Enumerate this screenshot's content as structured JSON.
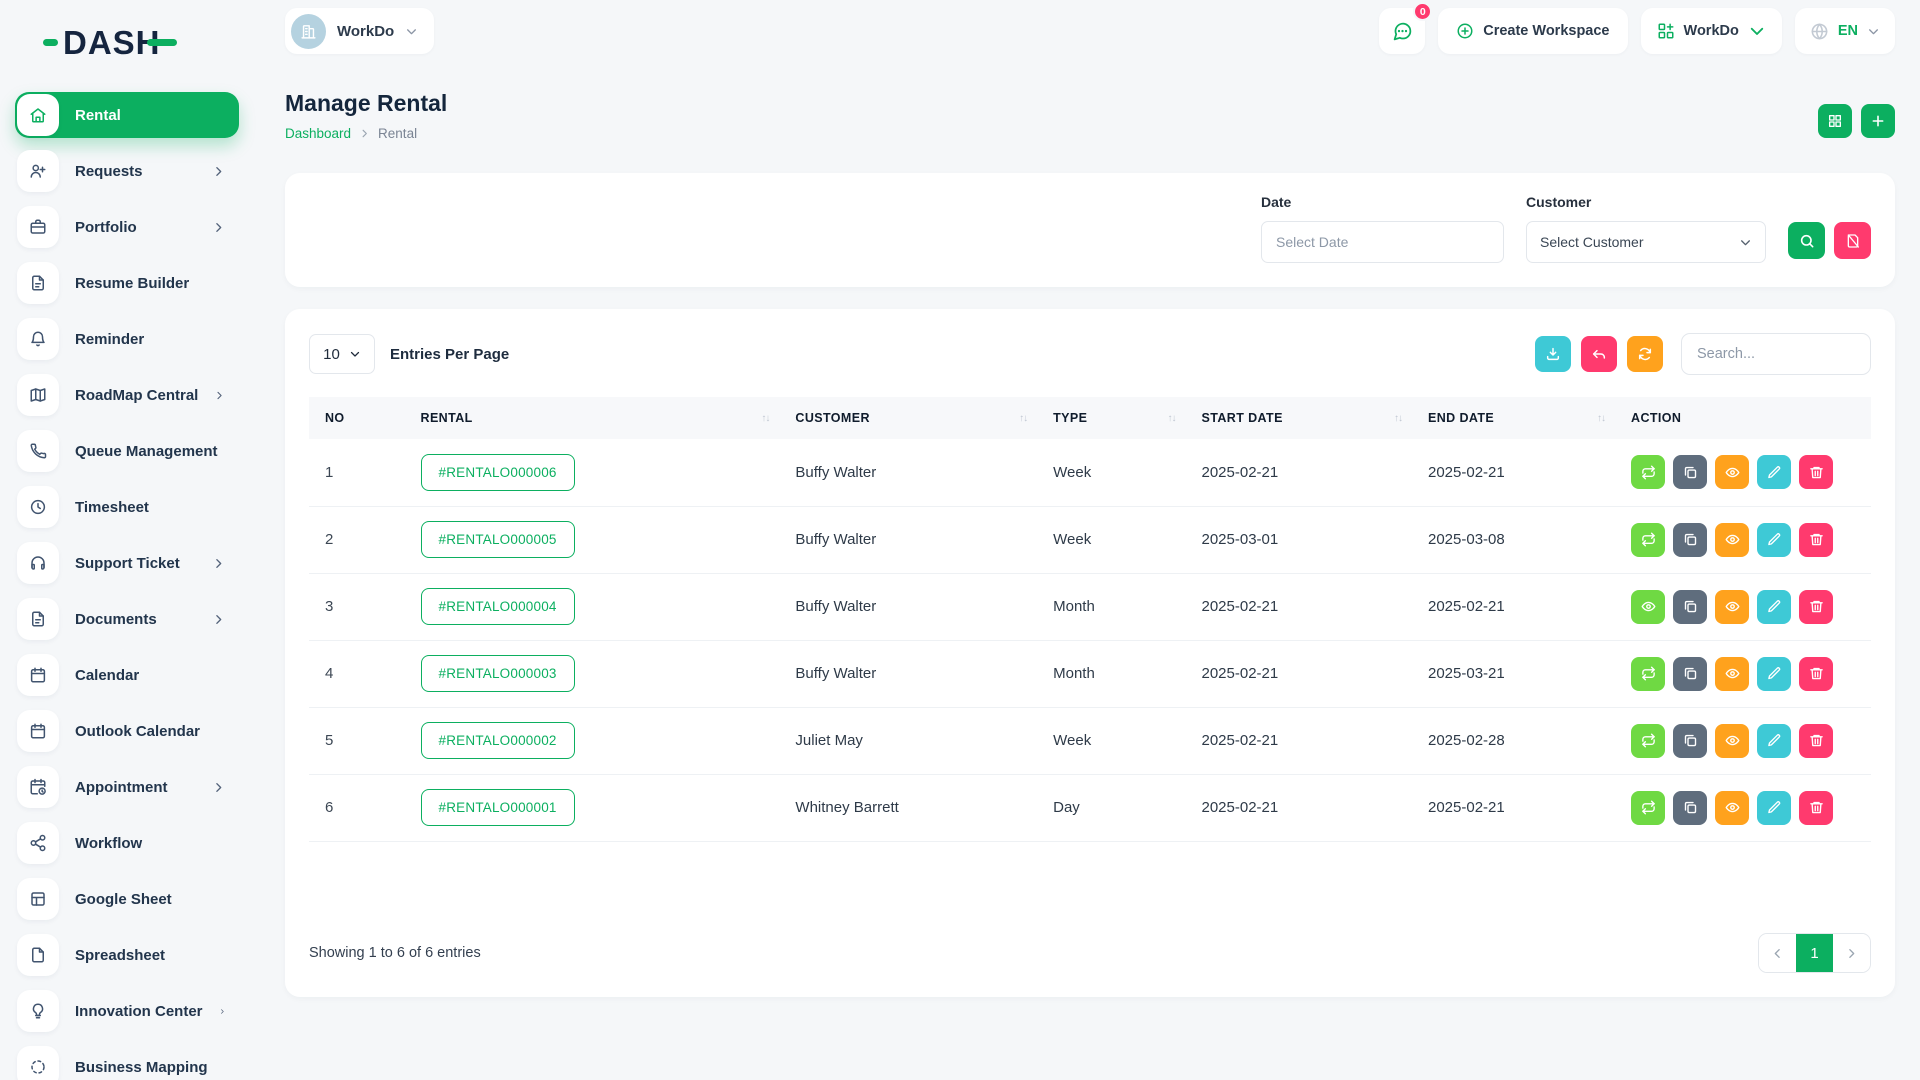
{
  "brand": {
    "name": "DASH"
  },
  "colors": {
    "primary": "#0caf60",
    "success": "#6fd943",
    "secondary": "#5f6d7d",
    "warning": "#ffa21d",
    "info": "#3ec9d6",
    "danger": "#ff3a6e"
  },
  "sidebar": {
    "items": [
      {
        "label": "Rental",
        "icon": "home-icon",
        "active": true,
        "chevron": false
      },
      {
        "label": "Requests",
        "icon": "user-plus-icon",
        "active": false,
        "chevron": true
      },
      {
        "label": "Portfolio",
        "icon": "briefcase-icon",
        "active": false,
        "chevron": true
      },
      {
        "label": "Resume Builder",
        "icon": "file-text-icon",
        "active": false,
        "chevron": false
      },
      {
        "label": "Reminder",
        "icon": "bell-icon",
        "active": false,
        "chevron": false
      },
      {
        "label": "RoadMap Central",
        "icon": "map-icon",
        "active": false,
        "chevron": true
      },
      {
        "label": "Queue Management",
        "icon": "phone-icon",
        "active": false,
        "chevron": true
      },
      {
        "label": "Timesheet",
        "icon": "clock-icon",
        "active": false,
        "chevron": false
      },
      {
        "label": "Support Ticket",
        "icon": "headphones-icon",
        "active": false,
        "chevron": true
      },
      {
        "label": "Documents",
        "icon": "file-text-icon",
        "active": false,
        "chevron": true
      },
      {
        "label": "Calendar",
        "icon": "calendar-icon",
        "active": false,
        "chevron": false
      },
      {
        "label": "Outlook Calendar",
        "icon": "calendar-icon",
        "active": false,
        "chevron": false
      },
      {
        "label": "Appointment",
        "icon": "calendar-clock-icon",
        "active": false,
        "chevron": true
      },
      {
        "label": "Workflow",
        "icon": "workflow-icon",
        "active": false,
        "chevron": false
      },
      {
        "label": "Google Sheet",
        "icon": "table-icon",
        "active": false,
        "chevron": false
      },
      {
        "label": "Spreadsheet",
        "icon": "file-icon",
        "active": false,
        "chevron": false
      },
      {
        "label": "Innovation Center",
        "icon": "lightbulb-icon",
        "active": false,
        "chevron": true
      },
      {
        "label": "Business Mapping",
        "icon": "dashed-circle-icon",
        "active": false,
        "chevron": false
      }
    ]
  },
  "topbar": {
    "workspace_label": "WorkDo",
    "messages_badge": "0",
    "create_workspace_label": "Create Workspace",
    "workdo_menu_label": "WorkDo",
    "language": "EN"
  },
  "page": {
    "title": "Manage Rental",
    "breadcrumb": [
      "Dashboard",
      "Rental"
    ]
  },
  "filters": {
    "date_label": "Date",
    "date_placeholder": "Select Date",
    "customer_label": "Customer",
    "customer_value": "Select Customer"
  },
  "table": {
    "entries_select": "10",
    "entries_label": "Entries Per Page",
    "search_placeholder": "Search...",
    "columns": [
      {
        "label": "NO",
        "sortable": false
      },
      {
        "label": "RENTAL",
        "sortable": true
      },
      {
        "label": "CUSTOMER",
        "sortable": true
      },
      {
        "label": "TYPE",
        "sortable": true
      },
      {
        "label": "START DATE",
        "sortable": true
      },
      {
        "label": "END DATE",
        "sortable": true
      },
      {
        "label": "ACTION",
        "sortable": false
      }
    ],
    "rows": [
      {
        "no": "1",
        "rental": "#RENTALO000006",
        "customer": "Buffy Walter",
        "type": "Week",
        "start": "2025-02-21",
        "end": "2025-02-21",
        "actions": [
          {
            "name": "convert",
            "icon": "repeat-icon",
            "color": "success"
          },
          {
            "name": "duplicate",
            "icon": "copy-icon",
            "color": "secondary"
          },
          {
            "name": "view",
            "icon": "eye-icon",
            "color": "warning"
          },
          {
            "name": "edit",
            "icon": "pencil-icon",
            "color": "info"
          },
          {
            "name": "delete",
            "icon": "trash-icon",
            "color": "danger"
          }
        ]
      },
      {
        "no": "2",
        "rental": "#RENTALO000005",
        "customer": "Buffy Walter",
        "type": "Week",
        "start": "2025-03-01",
        "end": "2025-03-08",
        "actions": [
          {
            "name": "convert",
            "icon": "repeat-icon",
            "color": "success"
          },
          {
            "name": "duplicate",
            "icon": "copy-icon",
            "color": "secondary"
          },
          {
            "name": "view",
            "icon": "eye-icon",
            "color": "warning"
          },
          {
            "name": "edit",
            "icon": "pencil-icon",
            "color": "info"
          },
          {
            "name": "delete",
            "icon": "trash-icon",
            "color": "danger"
          }
        ]
      },
      {
        "no": "3",
        "rental": "#RENTALO000004",
        "customer": "Buffy Walter",
        "type": "Month",
        "start": "2025-02-21",
        "end": "2025-02-21",
        "actions": [
          {
            "name": "preview",
            "icon": "eye-icon",
            "color": "success"
          },
          {
            "name": "duplicate",
            "icon": "copy-icon",
            "color": "secondary"
          },
          {
            "name": "view",
            "icon": "eye-icon",
            "color": "warning"
          },
          {
            "name": "edit",
            "icon": "pencil-icon",
            "color": "info"
          },
          {
            "name": "delete",
            "icon": "trash-icon",
            "color": "danger"
          }
        ]
      },
      {
        "no": "4",
        "rental": "#RENTALO000003",
        "customer": "Buffy Walter",
        "type": "Month",
        "start": "2025-02-21",
        "end": "2025-03-21",
        "actions": [
          {
            "name": "convert",
            "icon": "repeat-icon",
            "color": "success"
          },
          {
            "name": "duplicate",
            "icon": "copy-icon",
            "color": "secondary"
          },
          {
            "name": "view",
            "icon": "eye-icon",
            "color": "warning"
          },
          {
            "name": "edit",
            "icon": "pencil-icon",
            "color": "info"
          },
          {
            "name": "delete",
            "icon": "trash-icon",
            "color": "danger"
          }
        ]
      },
      {
        "no": "5",
        "rental": "#RENTALO000002",
        "customer": "Juliet May",
        "type": "Week",
        "start": "2025-02-21",
        "end": "2025-02-28",
        "actions": [
          {
            "name": "convert",
            "icon": "repeat-icon",
            "color": "success"
          },
          {
            "name": "duplicate",
            "icon": "copy-icon",
            "color": "secondary"
          },
          {
            "name": "view",
            "icon": "eye-icon",
            "color": "warning"
          },
          {
            "name": "edit",
            "icon": "pencil-icon",
            "color": "info"
          },
          {
            "name": "delete",
            "icon": "trash-icon",
            "color": "danger"
          }
        ]
      },
      {
        "no": "6",
        "rental": "#RENTALO000001",
        "customer": "Whitney Barrett",
        "type": "Day",
        "start": "2025-02-21",
        "end": "2025-02-21",
        "actions": [
          {
            "name": "convert",
            "icon": "repeat-icon",
            "color": "success"
          },
          {
            "name": "duplicate",
            "icon": "copy-icon",
            "color": "secondary"
          },
          {
            "name": "view",
            "icon": "eye-icon",
            "color": "warning"
          },
          {
            "name": "edit",
            "icon": "pencil-icon",
            "color": "info"
          },
          {
            "name": "delete",
            "icon": "trash-icon",
            "color": "danger"
          }
        ]
      }
    ],
    "footer": {
      "summary": "Showing 1 to 6 of 6 entries",
      "current_page": "1"
    }
  }
}
